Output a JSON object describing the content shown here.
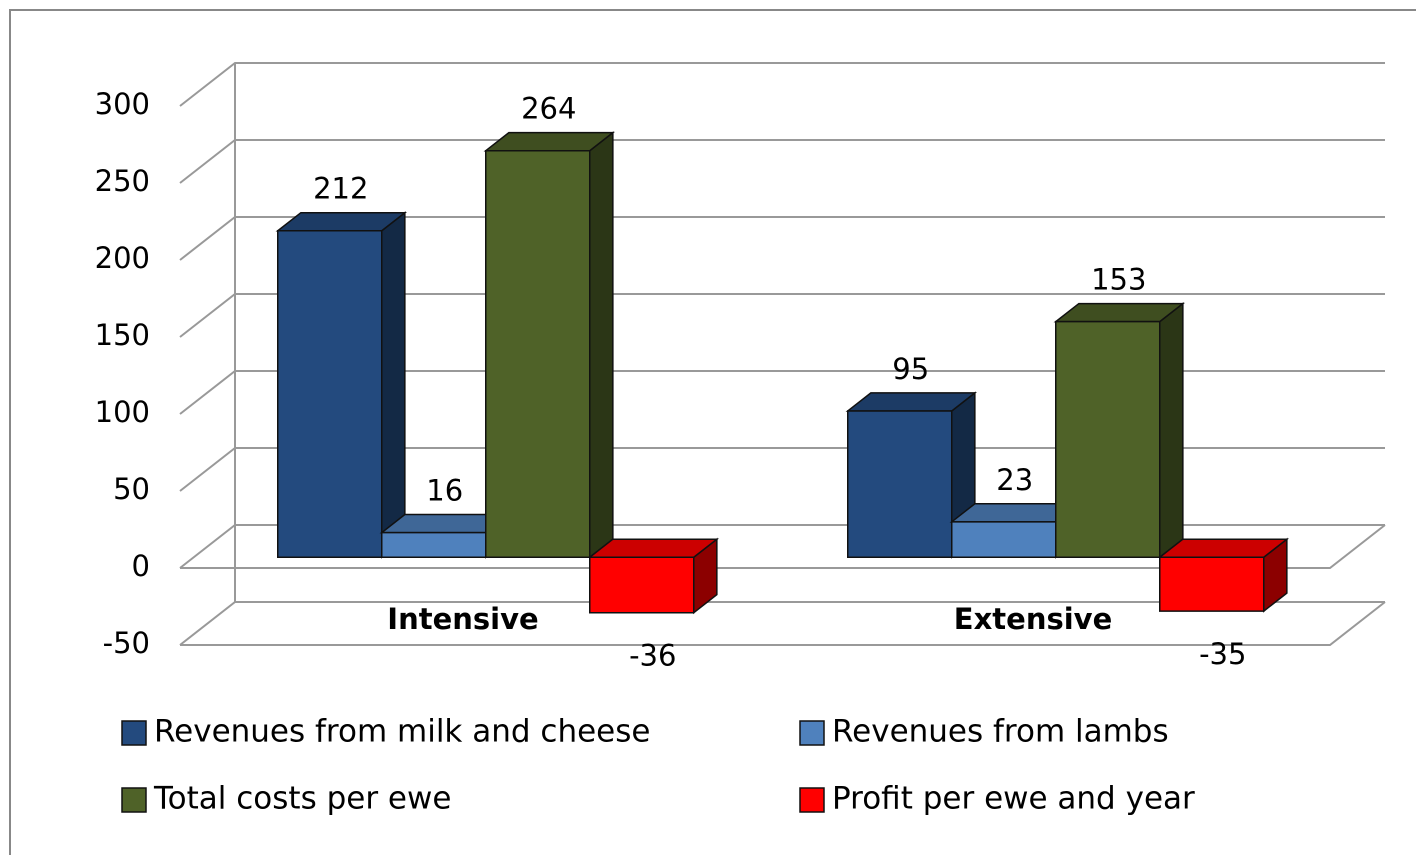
{
  "chart_data": {
    "type": "bar3d",
    "categories": [
      "Intensive",
      "Extensive"
    ],
    "series": [
      {
        "name": "Revenues from milk and cheese",
        "color": "#234a7e",
        "values": [
          212,
          95
        ]
      },
      {
        "name": "Revenues from lambs",
        "color": "#4f81bd",
        "values": [
          16,
          23
        ]
      },
      {
        "name": "Total costs per ewe",
        "color": "#4f6228",
        "values": [
          264,
          153
        ]
      },
      {
        "name": "Profit per ewe and year",
        "color": "#ff0000",
        "values": [
          -36,
          -35
        ]
      }
    ],
    "ylim": [
      -50,
      300
    ],
    "yticks": [
      -50,
      0,
      50,
      100,
      150,
      200,
      250,
      300
    ],
    "grid": true,
    "legend": "bottom"
  }
}
